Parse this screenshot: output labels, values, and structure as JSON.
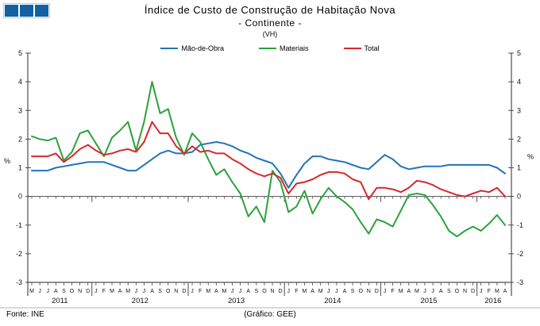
{
  "header": {
    "title": "Índice de Custo de Construção de Habitação Nova",
    "subtitle": "- Continente -",
    "unit": "(VH)"
  },
  "legend": [
    {
      "label": "Mão-de-Obra",
      "color": "#2173B8"
    },
    {
      "label": "Materiais",
      "color": "#2BA23C"
    },
    {
      "label": "Total",
      "color": "#D8272B"
    }
  ],
  "footer": {
    "source": "Fonte: INE",
    "credit": "(Gráfico: GEE)"
  },
  "logo": {
    "color": "#1261A4"
  },
  "chart_data": {
    "type": "line",
    "title": "Índice de Custo de Construção de Habitação Nova - Continente - (VH)",
    "ylabel": "%",
    "ylabel_right": "%",
    "ylim": [
      -3,
      5
    ],
    "ytick_step": 1,
    "grid": false,
    "legend_position": "top",
    "x_labels": [
      "M",
      "J",
      "J",
      "A",
      "S",
      "O",
      "N",
      "D",
      "J",
      "F",
      "M",
      "A",
      "M",
      "J",
      "J",
      "A",
      "S",
      "O",
      "N",
      "D",
      "J",
      "F",
      "M",
      "A",
      "M",
      "J",
      "J",
      "A",
      "S",
      "O",
      "N",
      "D",
      "J",
      "F",
      "M",
      "A",
      "M",
      "J",
      "J",
      "A",
      "S",
      "O",
      "N",
      "D",
      "J",
      "F",
      "M",
      "A",
      "M",
      "J",
      "J",
      "A",
      "S",
      "O",
      "N",
      "D",
      "J",
      "F",
      "M",
      "A"
    ],
    "year_groups": [
      {
        "label": "2011",
        "count": 8
      },
      {
        "label": "2012",
        "count": 12
      },
      {
        "label": "2013",
        "count": 12
      },
      {
        "label": "2014",
        "count": 12
      },
      {
        "label": "2015",
        "count": 12
      },
      {
        "label": "2016",
        "count": 4
      }
    ],
    "series": [
      {
        "name": "Mão-de-Obra",
        "color": "#2173B8",
        "values": [
          0.9,
          0.9,
          0.9,
          1.0,
          1.05,
          1.1,
          1.15,
          1.2,
          1.2,
          1.2,
          1.1,
          1.0,
          0.9,
          0.9,
          1.1,
          1.3,
          1.5,
          1.6,
          1.5,
          1.5,
          1.55,
          1.8,
          1.85,
          1.9,
          1.85,
          1.75,
          1.6,
          1.5,
          1.35,
          1.25,
          1.15,
          0.8,
          0.3,
          0.75,
          1.15,
          1.4,
          1.4,
          1.3,
          1.25,
          1.2,
          1.1,
          1.0,
          0.95,
          1.2,
          1.45,
          1.3,
          1.05,
          0.95,
          1.0,
          1.05,
          1.05,
          1.05,
          1.1,
          1.1,
          1.1,
          1.1,
          1.1,
          1.1,
          1.0,
          0.8
        ]
      },
      {
        "name": "Materiais",
        "color": "#2BA23C",
        "values": [
          2.1,
          2.0,
          1.95,
          2.05,
          1.25,
          1.55,
          2.2,
          2.3,
          1.85,
          1.4,
          2.05,
          2.3,
          2.6,
          1.6,
          2.6,
          4.0,
          2.9,
          3.05,
          2.05,
          1.45,
          2.2,
          1.9,
          1.3,
          0.75,
          0.95,
          0.5,
          0.1,
          -0.7,
          -0.35,
          -0.9,
          0.9,
          0.5,
          -0.55,
          -0.35,
          0.2,
          -0.6,
          -0.1,
          0.3,
          0.0,
          -0.2,
          -0.45,
          -0.9,
          -1.3,
          -0.8,
          -0.9,
          -1.05,
          -0.5,
          0.05,
          0.1,
          0.05,
          -0.3,
          -0.7,
          -1.2,
          -1.4,
          -1.2,
          -1.05,
          -1.2,
          -0.95,
          -0.65,
          -1.0
        ]
      },
      {
        "name": "Total",
        "color": "#D8272B",
        "values": [
          1.4,
          1.4,
          1.4,
          1.5,
          1.2,
          1.4,
          1.65,
          1.8,
          1.6,
          1.45,
          1.5,
          1.6,
          1.65,
          1.55,
          1.9,
          2.6,
          2.2,
          2.2,
          1.75,
          1.5,
          1.75,
          1.55,
          1.6,
          1.5,
          1.5,
          1.3,
          1.15,
          0.95,
          0.8,
          0.7,
          0.8,
          0.65,
          0.1,
          0.45,
          0.5,
          0.6,
          0.75,
          0.85,
          0.85,
          0.8,
          0.6,
          0.5,
          -0.1,
          0.3,
          0.3,
          0.25,
          0.15,
          0.3,
          0.55,
          0.5,
          0.4,
          0.25,
          0.15,
          0.05,
          0.0,
          0.1,
          0.2,
          0.15,
          0.3,
          0.0
        ]
      }
    ]
  }
}
